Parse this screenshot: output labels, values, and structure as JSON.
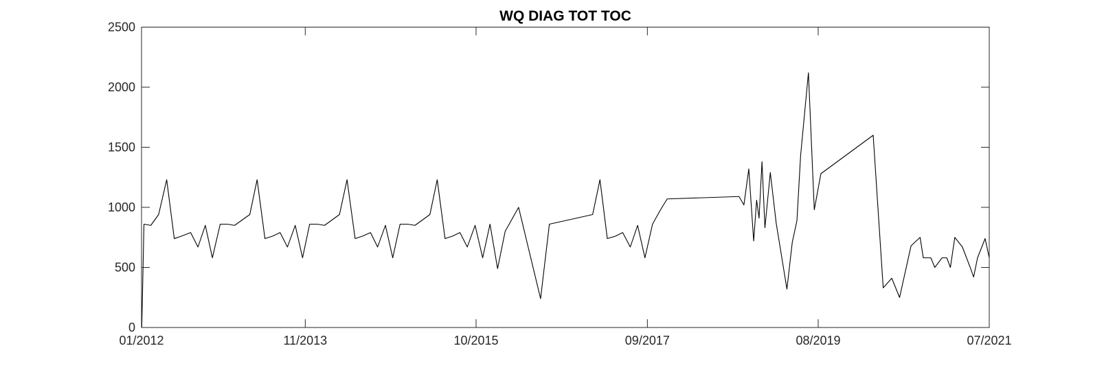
{
  "chart_data": {
    "type": "line",
    "title": "WQ DIAG TOT TOC",
    "xlabel": "",
    "ylabel": "",
    "xlim": [
      "2012-01-01",
      "2021-07-01"
    ],
    "ylim": [
      0,
      2500
    ],
    "grid": false,
    "legend": "none",
    "line_color": "#000000",
    "x_ticks": [
      {
        "date": "2012-01-01",
        "label": "01/2012"
      },
      {
        "date": "2013-11-01",
        "label": "11/2013"
      },
      {
        "date": "2015-10-01",
        "label": "10/2015"
      },
      {
        "date": "2017-09-01",
        "label": "09/2017"
      },
      {
        "date": "2019-08-01",
        "label": "08/2019"
      },
      {
        "date": "2021-07-01",
        "label": "07/2021"
      }
    ],
    "y_ticks": [
      0,
      500,
      1000,
      1500,
      2000,
      2500
    ],
    "series": [
      {
        "x": [
          "2012-01-02",
          "2012-01-11",
          "2012-02-08",
          "2012-03-11",
          "2012-04-13",
          "2012-05-14",
          "2012-06-12",
          "2012-07-20",
          "2012-08-19",
          "2012-09-18",
          "2012-10-17",
          "2012-11-18",
          "2012-12-17",
          "2013-01-16",
          "2013-03-19",
          "2013-04-18",
          "2013-05-20",
          "2013-06-20",
          "2013-07-21",
          "2013-08-20",
          "2013-09-21",
          "2013-10-21",
          "2013-11-19",
          "2013-12-20",
          "2014-01-19",
          "2014-03-21",
          "2014-04-21",
          "2014-05-24",
          "2014-06-23",
          "2014-07-26",
          "2014-08-24",
          "2014-09-25",
          "2014-10-25",
          "2014-11-24",
          "2014-12-25",
          "2015-01-24",
          "2015-03-26",
          "2015-04-25",
          "2015-05-27",
          "2015-06-26",
          "2015-07-27",
          "2015-08-26",
          "2015-09-27",
          "2015-10-28",
          "2015-11-27",
          "2015-12-28",
          "2016-01-28",
          "2016-03-23",
          "2016-06-21",
          "2016-07-27",
          "2017-01-20",
          "2017-02-19",
          "2017-03-21",
          "2017-04-23",
          "2017-05-23",
          "2017-06-23",
          "2017-07-23",
          "2017-08-22",
          "2017-09-22",
          "2017-10-22",
          "2017-11-21",
          "2018-09-11",
          "2018-10-01",
          "2018-10-21",
          "2018-11-10",
          "2018-11-22",
          "2018-12-02",
          "2018-12-14",
          "2018-12-26",
          "2019-01-17",
          "2019-02-10",
          "2019-03-26",
          "2019-04-17",
          "2019-05-06",
          "2019-05-21",
          "2019-06-22",
          "2019-07-16",
          "2019-08-12",
          "2020-03-13",
          "2020-04-23",
          "2020-05-28",
          "2020-06-29",
          "2020-08-15",
          "2020-09-21",
          "2020-10-04",
          "2020-11-04",
          "2020-11-20",
          "2020-12-20",
          "2021-01-08",
          "2021-01-23",
          "2021-02-10",
          "2021-03-13",
          "2021-04-14",
          "2021-04-28",
          "2021-05-14",
          "2021-06-14",
          "2021-07-01"
        ],
        "values": [
          0,
          860,
          850,
          940,
          1230,
          740,
          760,
          790,
          670,
          850,
          580,
          860,
          860,
          850,
          940,
          1230,
          740,
          760,
          790,
          670,
          850,
          580,
          860,
          860,
          850,
          940,
          1230,
          740,
          760,
          790,
          670,
          850,
          580,
          860,
          860,
          850,
          940,
          1230,
          740,
          760,
          790,
          670,
          850,
          580,
          860,
          490,
          800,
          1000,
          240,
          860,
          940,
          1230,
          740,
          760,
          790,
          670,
          850,
          580,
          860,
          970,
          1070,
          1090,
          1020,
          1320,
          720,
          1060,
          910,
          1380,
          830,
          1290,
          870,
          320,
          710,
          890,
          1430,
          2120,
          980,
          1280,
          1600,
          330,
          410,
          250,
          680,
          750,
          580,
          580,
          500,
          580,
          580,
          500,
          750,
          670,
          500,
          420,
          580,
          740,
          580
        ]
      }
    ]
  }
}
